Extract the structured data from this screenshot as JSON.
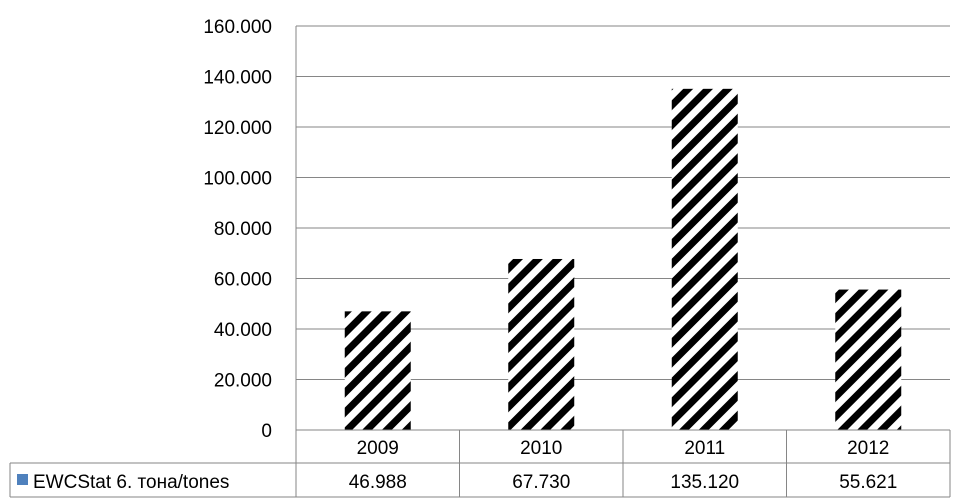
{
  "chart_data": {
    "type": "bar",
    "categories": [
      "2009",
      "2010",
      "2011",
      "2012"
    ],
    "series": [
      {
        "name": "EWCStat 6. тона/tones",
        "values": [
          46988,
          67730,
          135120,
          55621
        ]
      }
    ],
    "value_labels": [
      "46.988",
      "67.730",
      "135.120",
      "55.621"
    ],
    "ylim": [
      0,
      160000
    ],
    "yticks": [
      0,
      20000,
      40000,
      60000,
      80000,
      100000,
      120000,
      140000,
      160000
    ],
    "ytick_labels": [
      "0",
      "20.000",
      "40.000",
      "60.000",
      "80.000",
      "100.000",
      "120.000",
      "140.000",
      "160.000"
    ],
    "grid": true,
    "legend": "data-table",
    "bar_fill": "diagonal-hatch",
    "legend_color": "#4f81bd",
    "title": "",
    "xlabel": "",
    "ylabel": ""
  }
}
